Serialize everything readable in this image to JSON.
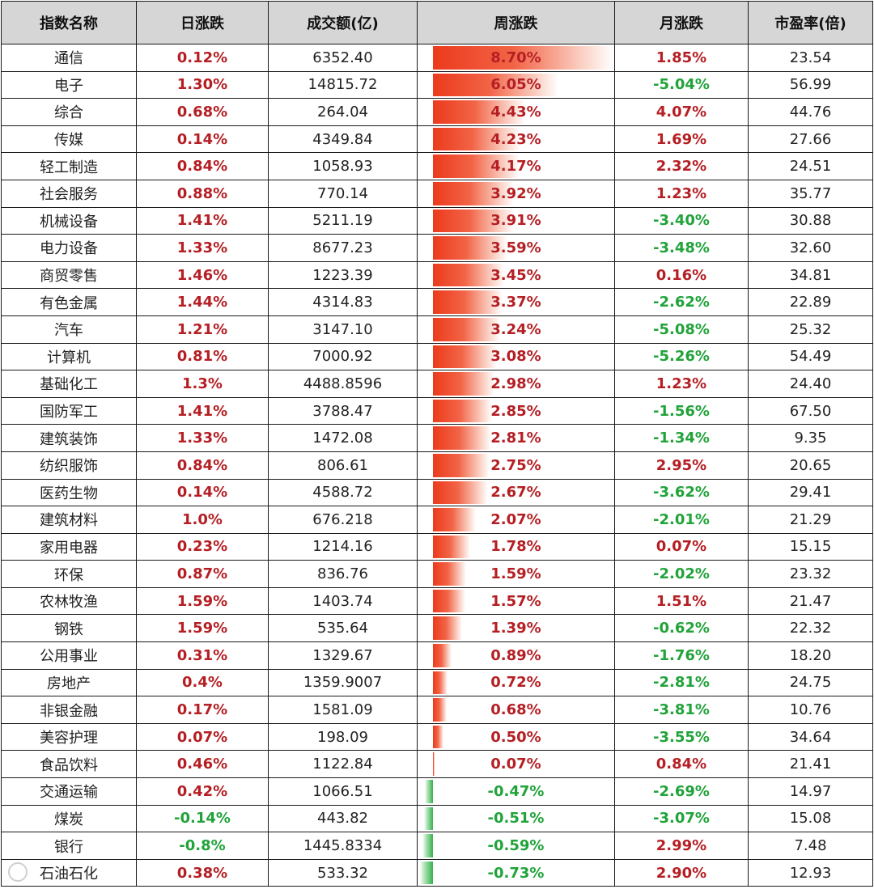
{
  "headers": [
    "指数名称",
    "日涨跌",
    "成交额(亿)",
    "周涨跌",
    "月涨跌",
    "市盈率(倍)"
  ],
  "bar_max": 8.7,
  "colors": {
    "positive": "#b51f24",
    "negative": "#21a33a",
    "header_bg": "#d6d6d6"
  },
  "rows": [
    {
      "name": "通信",
      "day": "0.12%",
      "volume": "6352.40",
      "week": "8.70%",
      "week_value": 8.7,
      "month": "1.85%",
      "pe": "23.54"
    },
    {
      "name": "电子",
      "day": "1.30%",
      "volume": "14815.72",
      "week": "6.05%",
      "week_value": 6.05,
      "month": "-5.04%",
      "pe": "56.99"
    },
    {
      "name": "综合",
      "day": "0.68%",
      "volume": "264.04",
      "week": "4.43%",
      "week_value": 4.43,
      "month": "4.07%",
      "pe": "44.76"
    },
    {
      "name": "传媒",
      "day": "0.14%",
      "volume": "4349.84",
      "week": "4.23%",
      "week_value": 4.23,
      "month": "1.69%",
      "pe": "27.66"
    },
    {
      "name": "轻工制造",
      "day": "0.84%",
      "volume": "1058.93",
      "week": "4.17%",
      "week_value": 4.17,
      "month": "2.32%",
      "pe": "24.51"
    },
    {
      "name": "社会服务",
      "day": "0.88%",
      "volume": "770.14",
      "week": "3.92%",
      "week_value": 3.92,
      "month": "1.23%",
      "pe": "35.77"
    },
    {
      "name": "机械设备",
      "day": "1.41%",
      "volume": "5211.19",
      "week": "3.91%",
      "week_value": 3.91,
      "month": "-3.40%",
      "pe": "30.88"
    },
    {
      "name": "电力设备",
      "day": "1.33%",
      "volume": "8677.23",
      "week": "3.59%",
      "week_value": 3.59,
      "month": "-3.48%",
      "pe": "32.60"
    },
    {
      "name": "商贸零售",
      "day": "1.46%",
      "volume": "1223.39",
      "week": "3.45%",
      "week_value": 3.45,
      "month": "0.16%",
      "pe": "34.81"
    },
    {
      "name": "有色金属",
      "day": "1.44%",
      "volume": "4314.83",
      "week": "3.37%",
      "week_value": 3.37,
      "month": "-2.62%",
      "pe": "22.89"
    },
    {
      "name": "汽车",
      "day": "1.21%",
      "volume": "3147.10",
      "week": "3.24%",
      "week_value": 3.24,
      "month": "-5.08%",
      "pe": "25.32"
    },
    {
      "name": "计算机",
      "day": "0.81%",
      "volume": "7000.92",
      "week": "3.08%",
      "week_value": 3.08,
      "month": "-5.26%",
      "pe": "54.49"
    },
    {
      "name": "基础化工",
      "day": "1.3%",
      "volume": "4488.8596",
      "week": "2.98%",
      "week_value": 2.98,
      "month": "1.23%",
      "pe": "24.40"
    },
    {
      "name": "国防军工",
      "day": "1.41%",
      "volume": "3788.47",
      "week": "2.85%",
      "week_value": 2.85,
      "month": "-1.56%",
      "pe": "67.50"
    },
    {
      "name": "建筑装饰",
      "day": "1.33%",
      "volume": "1472.08",
      "week": "2.81%",
      "week_value": 2.81,
      "month": "-1.34%",
      "pe": "9.35"
    },
    {
      "name": "纺织服饰",
      "day": "0.84%",
      "volume": "806.61",
      "week": "2.75%",
      "week_value": 2.75,
      "month": "2.95%",
      "pe": "20.65"
    },
    {
      "name": "医药生物",
      "day": "0.14%",
      "volume": "4588.72",
      "week": "2.67%",
      "week_value": 2.67,
      "month": "-3.62%",
      "pe": "29.41"
    },
    {
      "name": "建筑材料",
      "day": "1.0%",
      "volume": "676.218",
      "week": "2.07%",
      "week_value": 2.07,
      "month": "-2.01%",
      "pe": "21.29"
    },
    {
      "name": "家用电器",
      "day": "0.23%",
      "volume": "1214.16",
      "week": "1.78%",
      "week_value": 1.78,
      "month": "0.07%",
      "pe": "15.15"
    },
    {
      "name": "环保",
      "day": "0.87%",
      "volume": "836.76",
      "week": "1.59%",
      "week_value": 1.59,
      "month": "-2.02%",
      "pe": "23.32"
    },
    {
      "name": "农林牧渔",
      "day": "1.59%",
      "volume": "1403.74",
      "week": "1.57%",
      "week_value": 1.57,
      "month": "1.51%",
      "pe": "21.47"
    },
    {
      "name": "钢铁",
      "day": "1.59%",
      "volume": "535.64",
      "week": "1.39%",
      "week_value": 1.39,
      "month": "-0.62%",
      "pe": "22.32"
    },
    {
      "name": "公用事业",
      "day": "0.31%",
      "volume": "1329.67",
      "week": "0.89%",
      "week_value": 0.89,
      "month": "-1.76%",
      "pe": "18.20"
    },
    {
      "name": "房地产",
      "day": "0.4%",
      "volume": "1359.9007",
      "week": "0.72%",
      "week_value": 0.72,
      "month": "-2.81%",
      "pe": "24.75"
    },
    {
      "name": "非银金融",
      "day": "0.17%",
      "volume": "1581.09",
      "week": "0.68%",
      "week_value": 0.68,
      "month": "-3.81%",
      "pe": "10.76"
    },
    {
      "name": "美容护理",
      "day": "0.07%",
      "volume": "198.09",
      "week": "0.50%",
      "week_value": 0.5,
      "month": "-3.55%",
      "pe": "34.64"
    },
    {
      "name": "食品饮料",
      "day": "0.46%",
      "volume": "1122.84",
      "week": "0.07%",
      "week_value": 0.07,
      "month": "0.84%",
      "pe": "21.41"
    },
    {
      "name": "交通运输",
      "day": "0.42%",
      "volume": "1066.51",
      "week": "-0.47%",
      "week_value": -0.47,
      "month": "-2.69%",
      "pe": "14.97"
    },
    {
      "name": "煤炭",
      "day": "-0.14%",
      "volume": "443.82",
      "week": "-0.51%",
      "week_value": -0.51,
      "month": "-3.07%",
      "pe": "15.08"
    },
    {
      "name": "银行",
      "day": "-0.8%",
      "volume": "1445.8334",
      "week": "-0.59%",
      "week_value": -0.59,
      "month": "2.99%",
      "pe": "7.48"
    },
    {
      "name": "石油石化",
      "day": "0.38%",
      "volume": "533.32",
      "week": "-0.73%",
      "week_value": -0.73,
      "month": "2.90%",
      "pe": "12.93"
    }
  ]
}
